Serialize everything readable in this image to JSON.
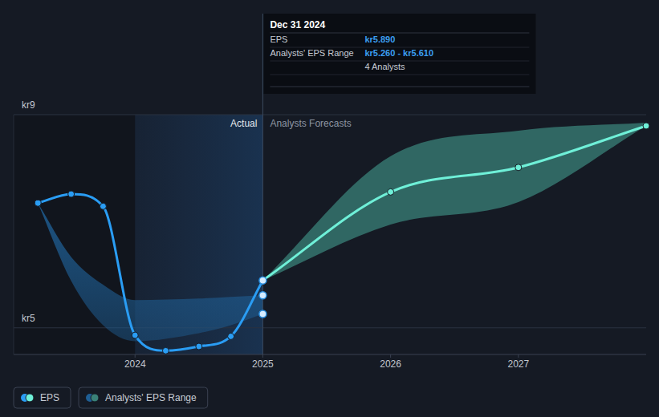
{
  "chart_data": {
    "type": "line",
    "xlim": [
      2023.05,
      2028.0
    ],
    "xticks": [
      2024,
      2025,
      2026,
      2027
    ],
    "ylim": [
      4.5,
      9.0
    ],
    "yticks": [
      {
        "value": 5,
        "label": "kr5"
      },
      {
        "value": 9,
        "label": "kr9"
      }
    ],
    "grid": true,
    "legend": "bottom-left",
    "series": [
      {
        "name": "EPS",
        "color": "#2a9df4",
        "marker": "circle",
        "line_style": "solid",
        "x": [
          2023.24,
          2023.5,
          2023.75,
          2024.0,
          2024.24,
          2024.5,
          2024.75,
          2025.0
        ],
        "values": [
          7.34,
          7.51,
          7.28,
          4.86,
          4.57,
          4.65,
          4.84,
          5.89
        ]
      },
      {
        "color": "#6ff0d8",
        "marker": "circle",
        "line_style": "solid",
        "x": [
          2025.0,
          2026.0,
          2027.0,
          2028.0
        ],
        "values": [
          5.89,
          7.55,
          8.01,
          8.79
        ]
      }
    ],
    "ranges": [
      {
        "name": "Analysts' EPS Range",
        "color": "#1f5f95",
        "x": [
          2023.24,
          2023.5,
          2023.75,
          2024.0,
          2024.5,
          2024.75,
          2025.0
        ],
        "low": [
          7.34,
          5.88,
          5.05,
          4.75,
          4.9,
          5.05,
          5.26
        ],
        "high": [
          7.34,
          6.33,
          5.81,
          5.52,
          5.55,
          5.58,
          5.61
        ]
      },
      {
        "color": "#3a8178",
        "x": [
          2025.0,
          2026.0,
          2027.0,
          2028.0
        ],
        "low": [
          5.89,
          6.94,
          7.36,
          8.79
        ],
        "high": [
          5.89,
          8.22,
          8.7,
          8.85
        ]
      }
    ],
    "regions": [
      {
        "label": "Actual",
        "x0": 2024.0,
        "x1": 2025.0
      },
      {
        "label": "Analysts Forecasts",
        "x0": 2025.0,
        "x1": 2028.0
      }
    ],
    "tooltip": {
      "x": 2025.0,
      "title": "Dec 31 2024",
      "rows": [
        {
          "label": "EPS",
          "value": 5.89,
          "value_label": "kr5.890"
        },
        {
          "label": "Analysts' EPS Range",
          "low": 5.26,
          "high": 5.61,
          "value_label": "kr5.260 - kr5.610"
        },
        {
          "value_label": "4 Analysts"
        }
      ]
    }
  }
}
